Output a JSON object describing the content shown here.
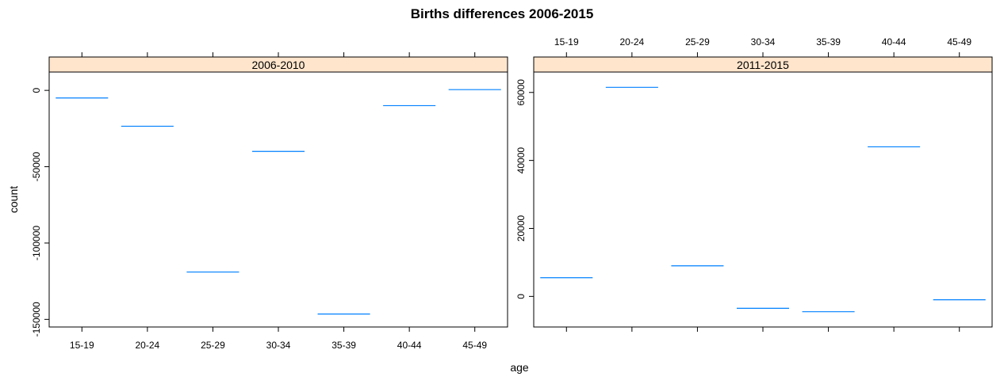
{
  "chart_data": {
    "type": "bar",
    "title": "Births differences 2006-2015",
    "xlabel": "age",
    "ylabel": "count",
    "categories": [
      "15-19",
      "20-24",
      "25-29",
      "30-34",
      "35-39",
      "40-44",
      "45-49"
    ],
    "panels": [
      {
        "name": "2006-2010",
        "values": [
          -5000,
          -23500,
          -119000,
          -40000,
          -146500,
          -10000,
          500
        ],
        "ylim": [
          -155000,
          12000
        ],
        "yticks": [
          0,
          -50000,
          -100000,
          -150000
        ],
        "ytick_labels": [
          "0",
          "-50000",
          "-100000",
          "-150000"
        ]
      },
      {
        "name": "2011-2015",
        "values": [
          5500,
          61500,
          9000,
          -3500,
          -4500,
          44000,
          -1000
        ],
        "ylim": [
          -9000,
          66000
        ],
        "yticks": [
          0,
          20000,
          40000,
          60000
        ],
        "ytick_labels": [
          "0",
          "20000",
          "40000",
          "60000"
        ]
      }
    ]
  }
}
